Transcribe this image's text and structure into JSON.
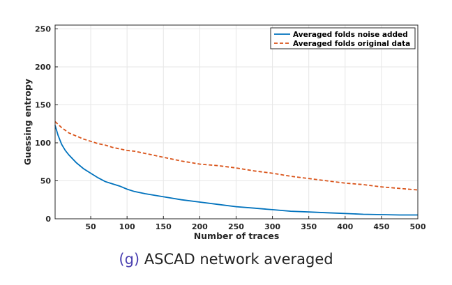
{
  "chart_data": {
    "type": "line",
    "xlabel": "Number of traces",
    "ylabel": "Guessing entropy",
    "xlim": [
      1,
      500
    ],
    "ylim": [
      0,
      255
    ],
    "xticks": [
      50,
      100,
      150,
      200,
      250,
      300,
      350,
      400,
      450,
      500
    ],
    "yticks": [
      0,
      50,
      100,
      150,
      200,
      250
    ],
    "grid": true,
    "legend_position": "top-right",
    "series": [
      {
        "name": "Averaged folds noise added",
        "color": "#0072BD",
        "style": "solid",
        "x": [
          1,
          5,
          10,
          15,
          20,
          30,
          40,
          50,
          60,
          70,
          80,
          90,
          100,
          110,
          125,
          150,
          175,
          200,
          225,
          250,
          275,
          300,
          325,
          350,
          375,
          400,
          425,
          450,
          475,
          500
        ],
        "y": [
          123,
          110,
          98,
          90,
          84,
          74,
          66,
          60,
          54,
          49,
          46,
          43,
          39,
          36,
          33,
          29,
          25,
          22,
          19,
          16,
          14,
          12,
          10,
          9,
          8,
          7,
          6,
          5.5,
          5,
          5
        ]
      },
      {
        "name": "Averaged folds original data",
        "color": "#D95319",
        "style": "dashed",
        "x": [
          1,
          10,
          20,
          30,
          40,
          50,
          60,
          70,
          80,
          90,
          100,
          110,
          125,
          150,
          175,
          200,
          225,
          250,
          275,
          300,
          325,
          350,
          375,
          400,
          425,
          450,
          475,
          500
        ],
        "y": [
          128,
          120,
          113,
          109,
          105,
          102,
          99,
          97,
          94,
          92,
          90,
          89,
          86,
          81,
          76,
          72,
          70,
          67,
          63,
          60,
          56,
          53,
          50,
          47,
          45,
          42,
          40,
          38
        ]
      }
    ]
  },
  "caption": {
    "tag": "(g)",
    "text": "ASCAD network averaged"
  }
}
